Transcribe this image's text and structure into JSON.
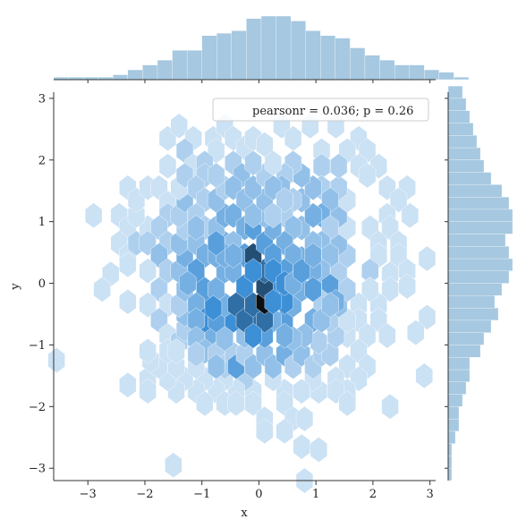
{
  "chart_data": {
    "type": "hexbin",
    "xlabel": "x",
    "ylabel": "y",
    "xlim": [
      -3.6,
      3.1
    ],
    "ylim": [
      -3.2,
      3.1
    ],
    "xticks": [
      -3,
      -2,
      -1,
      0,
      1,
      2,
      3
    ],
    "yticks": [
      -3,
      -2,
      -1,
      0,
      1,
      2,
      3
    ],
    "xtick_labels": [
      "−3",
      "−2",
      "−1",
      "0",
      "1",
      "2",
      "3"
    ],
    "ytick_labels": [
      "−3",
      "−2",
      "−1",
      "0",
      "1",
      "2",
      "3"
    ],
    "legend_text": "pearsonr = 0.036; p = 0.26",
    "legend_position": "upper right",
    "color_light": "#e7f1fa",
    "color_mid": "#3d8fd6",
    "color_dark": "#0a0f14",
    "marginal_color": "#a6c8e0",
    "hex_dx": 0.336,
    "hex_dy": 0.2,
    "max_count": 10,
    "hexes": [
      [
        -3.55,
        -1.25,
        1
      ],
      [
        -2.9,
        1.1,
        1
      ],
      [
        -2.45,
        1.1,
        1
      ],
      [
        -2.3,
        0.9,
        1
      ],
      [
        -2.45,
        0.65,
        1
      ],
      [
        -2.3,
        0.45,
        1
      ],
      [
        -2.6,
        0.15,
        1
      ],
      [
        -2.75,
        -0.1,
        1
      ],
      [
        -2.3,
        0.3,
        1
      ],
      [
        -2.15,
        0.65,
        2
      ],
      [
        -2.3,
        -0.3,
        1
      ],
      [
        -1.95,
        0.9,
        1
      ],
      [
        -2.15,
        1.1,
        1
      ],
      [
        -2.3,
        1.55,
        1
      ],
      [
        -2.15,
        1.35,
        1
      ],
      [
        -1.95,
        1.55,
        1
      ],
      [
        -1.6,
        1.9,
        1
      ],
      [
        -1.6,
        2.35,
        1
      ],
      [
        -1.4,
        2.55,
        1
      ],
      [
        -1.15,
        2.35,
        1
      ],
      [
        -1.3,
        2.15,
        2
      ],
      [
        -1.15,
        1.9,
        1
      ],
      [
        -0.8,
        2.35,
        1
      ],
      [
        -0.6,
        2.55,
        1
      ],
      [
        -0.75,
        2.15,
        1
      ],
      [
        -0.45,
        2.35,
        1
      ],
      [
        -0.25,
        2.2,
        1
      ],
      [
        -0.1,
        2.35,
        1
      ],
      [
        0.1,
        2.25,
        1
      ],
      [
        0.4,
        2.55,
        1
      ],
      [
        0.6,
        2.35,
        1
      ],
      [
        0.9,
        2.55,
        1
      ],
      [
        1.35,
        2.55,
        1
      ],
      [
        1.75,
        2.35,
        1
      ],
      [
        1.55,
        2.15,
        1
      ],
      [
        1.9,
        2.15,
        1
      ],
      [
        1.75,
        1.9,
        1
      ],
      [
        2.1,
        1.9,
        1
      ],
      [
        1.9,
        1.75,
        1
      ],
      [
        2.25,
        1.55,
        1
      ],
      [
        2.6,
        1.55,
        1
      ],
      [
        2.45,
        1.35,
        1
      ],
      [
        2.25,
        1.1,
        1
      ],
      [
        2.65,
        1.1,
        1
      ],
      [
        1.95,
        0.9,
        1
      ],
      [
        2.3,
        0.9,
        1
      ],
      [
        2.1,
        0.65,
        1
      ],
      [
        2.45,
        0.65,
        1
      ],
      [
        2.1,
        0.45,
        1
      ],
      [
        2.45,
        0.45,
        1
      ],
      [
        1.95,
        0.2,
        2
      ],
      [
        2.3,
        0.15,
        1
      ],
      [
        2.6,
        0.2,
        1
      ],
      [
        2.95,
        0.4,
        1
      ],
      [
        2.6,
        -0.05,
        1
      ],
      [
        2.3,
        -0.1,
        1
      ],
      [
        2.1,
        -0.35,
        1
      ],
      [
        1.95,
        -0.1,
        1
      ],
      [
        1.75,
        -0.35,
        1
      ],
      [
        2.1,
        -0.6,
        1
      ],
      [
        1.75,
        -0.6,
        1
      ],
      [
        1.55,
        -0.85,
        1
      ],
      [
        1.9,
        -0.85,
        1
      ],
      [
        2.25,
        -0.85,
        1
      ],
      [
        2.95,
        -0.55,
        1
      ],
      [
        2.75,
        -0.8,
        1
      ],
      [
        2.9,
        -1.5,
        1
      ],
      [
        1.75,
        -1.1,
        1
      ],
      [
        1.55,
        -1.35,
        1
      ],
      [
        1.9,
        -1.35,
        1
      ],
      [
        1.35,
        -1.55,
        1
      ],
      [
        1.75,
        -1.55,
        1
      ],
      [
        1.55,
        -1.75,
        1
      ],
      [
        1.35,
        -1.75,
        1
      ],
      [
        1.05,
        -1.75,
        1
      ],
      [
        0.95,
        -1.55,
        1
      ],
      [
        0.75,
        -1.75,
        1
      ],
      [
        0.45,
        -1.75,
        1
      ],
      [
        0.25,
        -1.55,
        1
      ],
      [
        -0.1,
        -1.75,
        1
      ],
      [
        -0.25,
        -1.55,
        2
      ],
      [
        -0.4,
        -1.75,
        1
      ],
      [
        -0.6,
        -1.55,
        1
      ],
      [
        -0.75,
        -1.75,
        1
      ],
      [
        -0.95,
        -1.55,
        1
      ],
      [
        -1.1,
        -1.75,
        1
      ],
      [
        -1.3,
        -1.55,
        1
      ],
      [
        -1.45,
        -1.75,
        1
      ],
      [
        -1.6,
        -1.55,
        1
      ],
      [
        -1.95,
        -1.55,
        1
      ],
      [
        -1.95,
        -1.75,
        1
      ],
      [
        -1.75,
        -1.35,
        1
      ],
      [
        -1.45,
        -1.35,
        1
      ],
      [
        -1.1,
        -1.35,
        1
      ],
      [
        -0.95,
        -1.95,
        1
      ],
      [
        -0.6,
        -1.95,
        1
      ],
      [
        -0.4,
        -1.95,
        1
      ],
      [
        -0.1,
        -1.95,
        1
      ],
      [
        0.1,
        -2.2,
        1
      ],
      [
        0.45,
        -1.95,
        1
      ],
      [
        0.6,
        -2.2,
        1
      ],
      [
        0.8,
        -2.2,
        1
      ],
      [
        0.45,
        -2.4,
        1
      ],
      [
        0.1,
        -2.4,
        1
      ],
      [
        0.75,
        -2.65,
        1
      ],
      [
        1.55,
        -1.95,
        1
      ],
      [
        2.3,
        -2.0,
        1
      ],
      [
        1.05,
        -2.7,
        1
      ],
      [
        -1.5,
        -2.95,
        1
      ],
      [
        0.8,
        -3.2,
        1
      ],
      [
        -2.3,
        -1.65,
        1
      ],
      [
        -1.9,
        -1.25,
        1
      ],
      [
        -1.75,
        1.55,
        1
      ],
      [
        -1.6,
        1.3,
        1
      ],
      [
        -1.6,
        1.1,
        2
      ],
      [
        -1.75,
        0.9,
        2
      ],
      [
        -1.95,
        0.65,
        2
      ],
      [
        -1.6,
        0.65,
        2
      ],
      [
        -1.75,
        0.45,
        3
      ],
      [
        -1.95,
        0.2,
        1
      ],
      [
        -1.6,
        0.2,
        2
      ],
      [
        -1.75,
        -0.1,
        2
      ],
      [
        -1.6,
        -0.35,
        1
      ],
      [
        -1.95,
        -0.35,
        1
      ],
      [
        -1.75,
        -0.6,
        2
      ],
      [
        -1.6,
        -0.85,
        1
      ],
      [
        -1.4,
        -0.95,
        2
      ],
      [
        -1.6,
        -1.1,
        1
      ],
      [
        -1.95,
        -1.1,
        1
      ],
      [
        -1.45,
        -1.1,
        1
      ],
      [
        -1.3,
        -0.75,
        2
      ],
      [
        -1.3,
        -0.5,
        3
      ],
      [
        -1.4,
        -0.35,
        2
      ],
      [
        -1.3,
        -0.1,
        3
      ],
      [
        -1.4,
        0.2,
        3
      ],
      [
        -1.3,
        0.45,
        4
      ],
      [
        -1.4,
        0.65,
        3
      ],
      [
        -1.3,
        0.9,
        2
      ],
      [
        -1.4,
        1.1,
        2
      ],
      [
        -1.3,
        1.35,
        3
      ],
      [
        -1.4,
        1.55,
        1
      ],
      [
        -1.3,
        1.75,
        2
      ],
      [
        -0.95,
        1.95,
        2
      ],
      [
        -0.95,
        1.75,
        2
      ],
      [
        -1.1,
        1.55,
        2
      ],
      [
        -0.95,
        1.35,
        2
      ],
      [
        -1.1,
        1.1,
        2
      ],
      [
        -0.95,
        0.9,
        2
      ],
      [
        -1.1,
        0.65,
        3
      ],
      [
        -0.95,
        0.45,
        4
      ],
      [
        -1.1,
        0.2,
        5
      ],
      [
        -0.95,
        -0.1,
        5
      ],
      [
        -1.1,
        -0.35,
        4
      ],
      [
        -0.95,
        -0.6,
        6
      ],
      [
        -0.8,
        -0.9,
        4
      ],
      [
        -1.1,
        -0.6,
        4
      ],
      [
        -1.1,
        -0.9,
        3
      ],
      [
        -0.95,
        -1.1,
        3
      ],
      [
        -0.75,
        -1.15,
        2
      ],
      [
        -0.6,
        -1.35,
        2
      ],
      [
        -0.75,
        -1.35,
        3
      ],
      [
        -0.45,
        -1.15,
        2
      ],
      [
        -0.4,
        -1.35,
        5
      ],
      [
        -0.25,
        -1.15,
        2
      ],
      [
        -0.1,
        -1.35,
        3
      ],
      [
        0.1,
        -1.15,
        3
      ],
      [
        0.25,
        -1.35,
        3
      ],
      [
        0.45,
        -1.15,
        4
      ],
      [
        0.6,
        -1.35,
        2
      ],
      [
        0.75,
        -1.15,
        3
      ],
      [
        0.95,
        -1.35,
        2
      ],
      [
        1.1,
        -1.15,
        2
      ],
      [
        1.25,
        -1.15,
        2
      ],
      [
        1.05,
        -0.95,
        2
      ],
      [
        1.35,
        -0.85,
        2
      ],
      [
        1.25,
        -0.6,
        2
      ],
      [
        1.55,
        -0.6,
        1
      ],
      [
        1.4,
        -0.35,
        3
      ],
      [
        1.55,
        -0.1,
        2
      ],
      [
        1.4,
        0.2,
        2
      ],
      [
        1.55,
        0.45,
        2
      ],
      [
        1.4,
        0.65,
        3
      ],
      [
        1.55,
        0.9,
        1
      ],
      [
        1.4,
        1.1,
        3
      ],
      [
        1.55,
        1.35,
        1
      ],
      [
        1.4,
        1.55,
        2
      ],
      [
        1.4,
        1.9,
        2
      ],
      [
        1.1,
        2.15,
        1
      ],
      [
        1.1,
        1.9,
        2
      ],
      [
        1.1,
        1.55,
        2
      ],
      [
        1.25,
        1.35,
        3
      ],
      [
        1.1,
        1.1,
        4
      ],
      [
        1.25,
        0.9,
        2
      ],
      [
        1.1,
        0.65,
        3
      ],
      [
        1.25,
        0.45,
        3
      ],
      [
        1.1,
        0.2,
        3
      ],
      [
        1.25,
        -0.05,
        5
      ],
      [
        1.1,
        -0.3,
        2
      ],
      [
        1.35,
        -0.3,
        4
      ],
      [
        0.95,
        -0.6,
        4
      ],
      [
        0.8,
        -0.85,
        3
      ],
      [
        0.6,
        -0.9,
        3
      ],
      [
        0.45,
        -0.6,
        5
      ],
      [
        0.6,
        -0.35,
        4
      ],
      [
        0.75,
        -0.1,
        4
      ],
      [
        0.95,
        0.2,
        4
      ],
      [
        0.75,
        0.4,
        4
      ],
      [
        0.95,
        0.65,
        3
      ],
      [
        0.75,
        0.9,
        3
      ],
      [
        0.95,
        1.1,
        4
      ],
      [
        0.75,
        1.35,
        3
      ],
      [
        0.95,
        1.55,
        3
      ],
      [
        0.75,
        1.75,
        3
      ],
      [
        0.6,
        1.95,
        2
      ],
      [
        0.45,
        1.75,
        2
      ],
      [
        0.4,
        1.55,
        3
      ],
      [
        0.6,
        1.35,
        2
      ],
      [
        0.45,
        1.1,
        2
      ],
      [
        0.6,
        0.9,
        3
      ],
      [
        0.45,
        0.65,
        4
      ],
      [
        0.6,
        0.45,
        4
      ],
      [
        0.45,
        0.2,
        5
      ],
      [
        0.3,
        -0.05,
        6
      ],
      [
        0.45,
        -0.3,
        6
      ],
      [
        0.25,
        -0.6,
        4
      ],
      [
        0.1,
        -0.85,
        5
      ],
      [
        -0.1,
        -0.6,
        7
      ],
      [
        -0.25,
        -0.85,
        3
      ],
      [
        -0.45,
        -0.6,
        6
      ],
      [
        -0.6,
        -0.9,
        3
      ],
      [
        -0.75,
        -0.6,
        5
      ],
      [
        -0.6,
        -0.35,
        4
      ],
      [
        -0.75,
        -0.1,
        4
      ],
      [
        -0.6,
        0.2,
        4
      ],
      [
        -0.75,
        0.45,
        4
      ],
      [
        -0.6,
        0.65,
        4
      ],
      [
        -0.75,
        0.9,
        3
      ],
      [
        -0.6,
        1.1,
        4
      ],
      [
        -0.75,
        1.35,
        3
      ],
      [
        -0.6,
        1.55,
        2
      ],
      [
        -0.75,
        1.75,
        2
      ],
      [
        -0.45,
        1.95,
        2
      ],
      [
        -0.3,
        1.75,
        3
      ],
      [
        -0.45,
        1.55,
        3
      ],
      [
        -0.25,
        1.35,
        3
      ],
      [
        -0.45,
        1.1,
        4
      ],
      [
        -0.25,
        0.9,
        4
      ],
      [
        -0.45,
        0.65,
        3
      ],
      [
        -0.25,
        0.45,
        5
      ],
      [
        -0.45,
        0.2,
        4
      ],
      [
        -0.25,
        -0.05,
        6
      ],
      [
        -0.4,
        -0.35,
        7
      ],
      [
        -0.25,
        -0.6,
        7
      ],
      [
        -0.1,
        -0.35,
        7
      ],
      [
        0.1,
        -0.6,
        7
      ],
      [
        0.1,
        -0.3,
        10
      ],
      [
        0.1,
        -0.05,
        8
      ],
      [
        0.1,
        0.2,
        7
      ],
      [
        -0.1,
        0.45,
        8
      ],
      [
        -0.1,
        0.9,
        5
      ],
      [
        0.1,
        0.65,
        5
      ],
      [
        0.25,
        0.45,
        5
      ],
      [
        0.25,
        0.9,
        4
      ],
      [
        0.1,
        1.1,
        3
      ],
      [
        -0.1,
        1.1,
        3
      ],
      [
        0.1,
        1.35,
        3
      ],
      [
        -0.1,
        1.55,
        3
      ],
      [
        0.1,
        1.75,
        2
      ],
      [
        0.25,
        1.55,
        3
      ],
      [
        0.25,
        1.95,
        1
      ],
      [
        0.45,
        1.35,
        2
      ],
      [
        -0.1,
        1.95,
        2
      ],
      [
        0.25,
        1.1,
        2
      ],
      [
        -0.1,
        0.2,
        6
      ],
      [
        0.25,
        0.2,
        6
      ],
      [
        0.45,
        0.0,
        6
      ],
      [
        0.25,
        -0.3,
        6
      ],
      [
        -0.1,
        -0.85,
        6
      ],
      [
        0.45,
        -0.85,
        4
      ],
      [
        0.95,
        -0.1,
        5
      ],
      [
        1.1,
        -0.6,
        3
      ],
      [
        1.25,
        -0.35,
        3
      ],
      [
        -1.1,
        -1.15,
        2
      ],
      [
        -0.8,
        -0.4,
        6
      ],
      [
        -1.25,
        0.0,
        4
      ],
      [
        0.6,
        0.0,
        4
      ],
      [
        0.75,
        0.2,
        5
      ],
      [
        0.95,
        0.45,
        4
      ],
      [
        -0.6,
        0.45,
        4
      ],
      [
        -0.45,
        0.45,
        4
      ],
      [
        -0.75,
        0.65,
        5
      ],
      [
        -1.1,
        0.9,
        3
      ]
    ],
    "x_hist": {
      "bin_edges_start": -3.6,
      "bin_width": 0.26,
      "counts": [
        1,
        1,
        1,
        1,
        2,
        4,
        6,
        8,
        12,
        12,
        18,
        19,
        20,
        25,
        26,
        26,
        24,
        20,
        18,
        17,
        13,
        10,
        8,
        6,
        6,
        4,
        3,
        1
      ]
    },
    "y_hist": {
      "bin_edges_start": -3.2,
      "bin_width": 0.2,
      "counts": [
        1,
        1,
        1,
        2,
        3,
        3,
        4,
        5,
        6,
        6,
        9,
        10,
        12,
        14,
        13,
        15,
        17,
        18,
        17,
        16,
        18,
        18,
        17,
        15,
        12,
        10,
        9,
        8,
        7,
        6,
        5,
        4
      ]
    }
  }
}
